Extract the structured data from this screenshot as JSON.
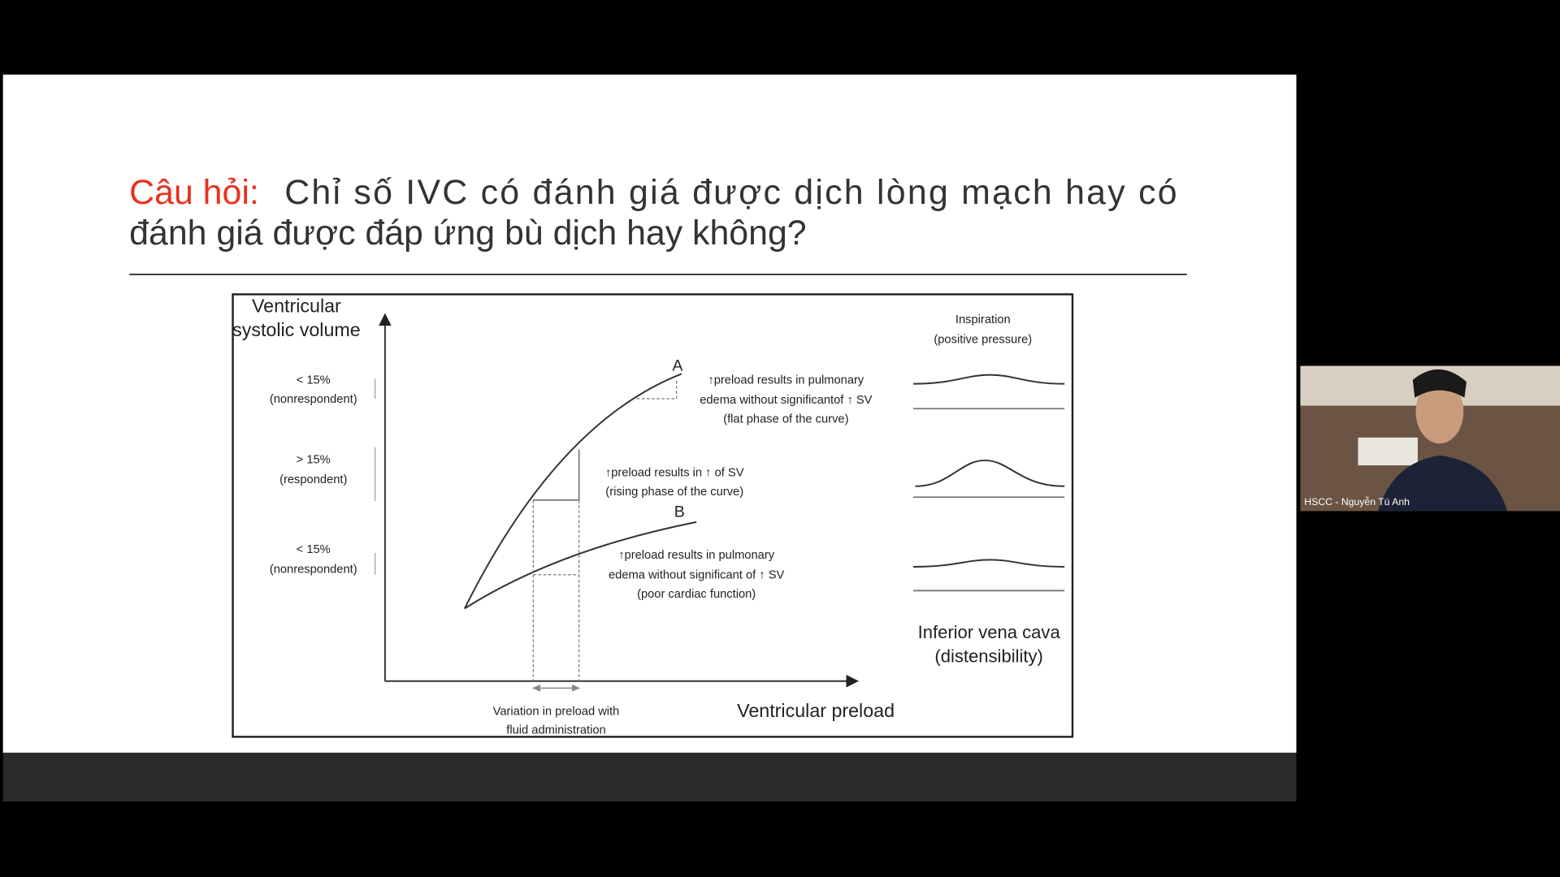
{
  "slide": {
    "title_label": "Câu hỏi:",
    "title_line1": "Chỉ số IVC có đánh giá được dịch lòng mạch hay có",
    "title_line2": "đánh giá được đáp ứng bù dịch hay không?"
  },
  "figure": {
    "y_axis_label": [
      "Ventricular",
      "systolic volume"
    ],
    "x_axis_label": "Ventricular preload",
    "range_labels": [
      [
        "< 15%",
        "(nonrespondent)"
      ],
      [
        "> 15%",
        "(respondent)"
      ],
      [
        "< 15%",
        "(nonrespondent)"
      ]
    ],
    "curve_labels": [
      "A",
      "B"
    ],
    "annotation_a": [
      "↑preload results in pulmonary",
      "edema without significantof ↑ SV",
      "(flat phase of the curve)"
    ],
    "annotation_mid": [
      "↑preload results in ↑ of SV",
      "(rising phase of the curve)"
    ],
    "annotation_b": [
      "↑preload results in pulmonary",
      "edema without significant of ↑ SV",
      "(poor cardiac function)"
    ],
    "variation_label": [
      "Variation in preload with",
      "fluid administration"
    ],
    "ivc_header": [
      "Inspiration",
      "(positive pressure)"
    ],
    "ivc_caption": [
      "Inferior vena cava",
      "(distensibility)"
    ]
  },
  "participant": {
    "name": "HSCC - Nguyễn Tú Anh"
  }
}
